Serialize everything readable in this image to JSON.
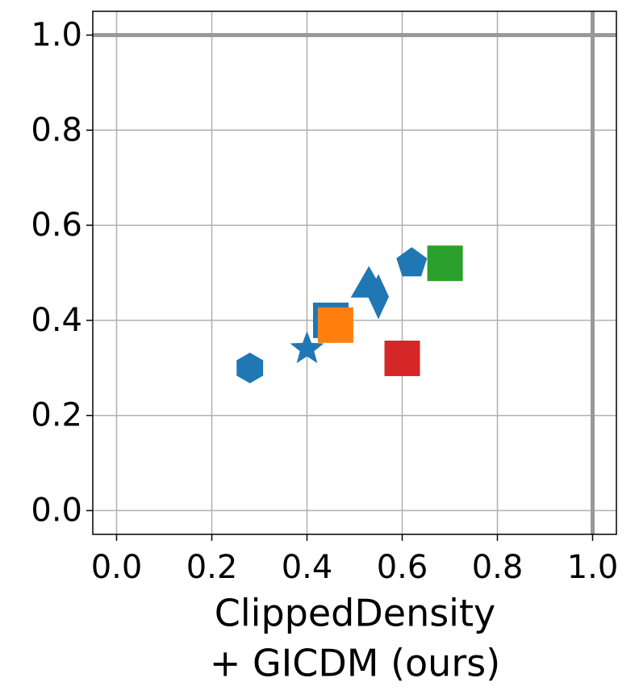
{
  "chart_data": {
    "type": "scatter",
    "xlabel": [
      "ClippedDensity",
      "+ GICDM (ours)"
    ],
    "xlim": [
      -0.05,
      1.05
    ],
    "ylim": [
      -0.05,
      1.05
    ],
    "xticks": [
      {
        "value": 0,
        "label": "0.0"
      },
      {
        "value": 0.2,
        "label": "0.2"
      },
      {
        "value": 0.4,
        "label": "0.4"
      },
      {
        "value": 0.6,
        "label": "0.6"
      },
      {
        "value": 0.8,
        "label": "0.8"
      },
      {
        "value": 1,
        "label": "1.0"
      }
    ],
    "yticks": [
      {
        "value": 0,
        "label": "0.0"
      },
      {
        "value": 0.2,
        "label": "0.2"
      },
      {
        "value": 0.4,
        "label": "0.4"
      },
      {
        "value": 0.6,
        "label": "0.6"
      },
      {
        "value": 0.8,
        "label": "0.8"
      },
      {
        "value": 1,
        "label": "1.0"
      }
    ],
    "grid": true,
    "reference_lines": {
      "x": 1,
      "y": 1,
      "color": "#999999"
    },
    "series": [
      {
        "marker": "hexagon",
        "color": "#1f77b4",
        "x": [
          0.28
        ],
        "values": [
          0.3
        ]
      },
      {
        "marker": "star",
        "color": "#1f77b4",
        "x": [
          0.4
        ],
        "values": [
          0.34
        ]
      },
      {
        "marker": "square",
        "color": "#1f77b4",
        "x": [
          0.45
        ],
        "values": [
          0.4
        ]
      },
      {
        "marker": "square",
        "color": "#ff7f0e",
        "x": [
          0.46
        ],
        "values": [
          0.39
        ]
      },
      {
        "marker": "triangle",
        "color": "#1f77b4",
        "x": [
          0.53
        ],
        "values": [
          0.47
        ]
      },
      {
        "marker": "diamond",
        "color": "#1f77b4",
        "x": [
          0.55
        ],
        "values": [
          0.45
        ]
      },
      {
        "marker": "pentagon",
        "color": "#1f77b4",
        "x": [
          0.62
        ],
        "values": [
          0.52
        ]
      },
      {
        "marker": "square",
        "color": "#2ca02c",
        "x": [
          0.69
        ],
        "values": [
          0.52
        ]
      },
      {
        "marker": "square",
        "color": "#d62728",
        "x": [
          0.6
        ],
        "values": [
          0.32
        ]
      }
    ]
  }
}
